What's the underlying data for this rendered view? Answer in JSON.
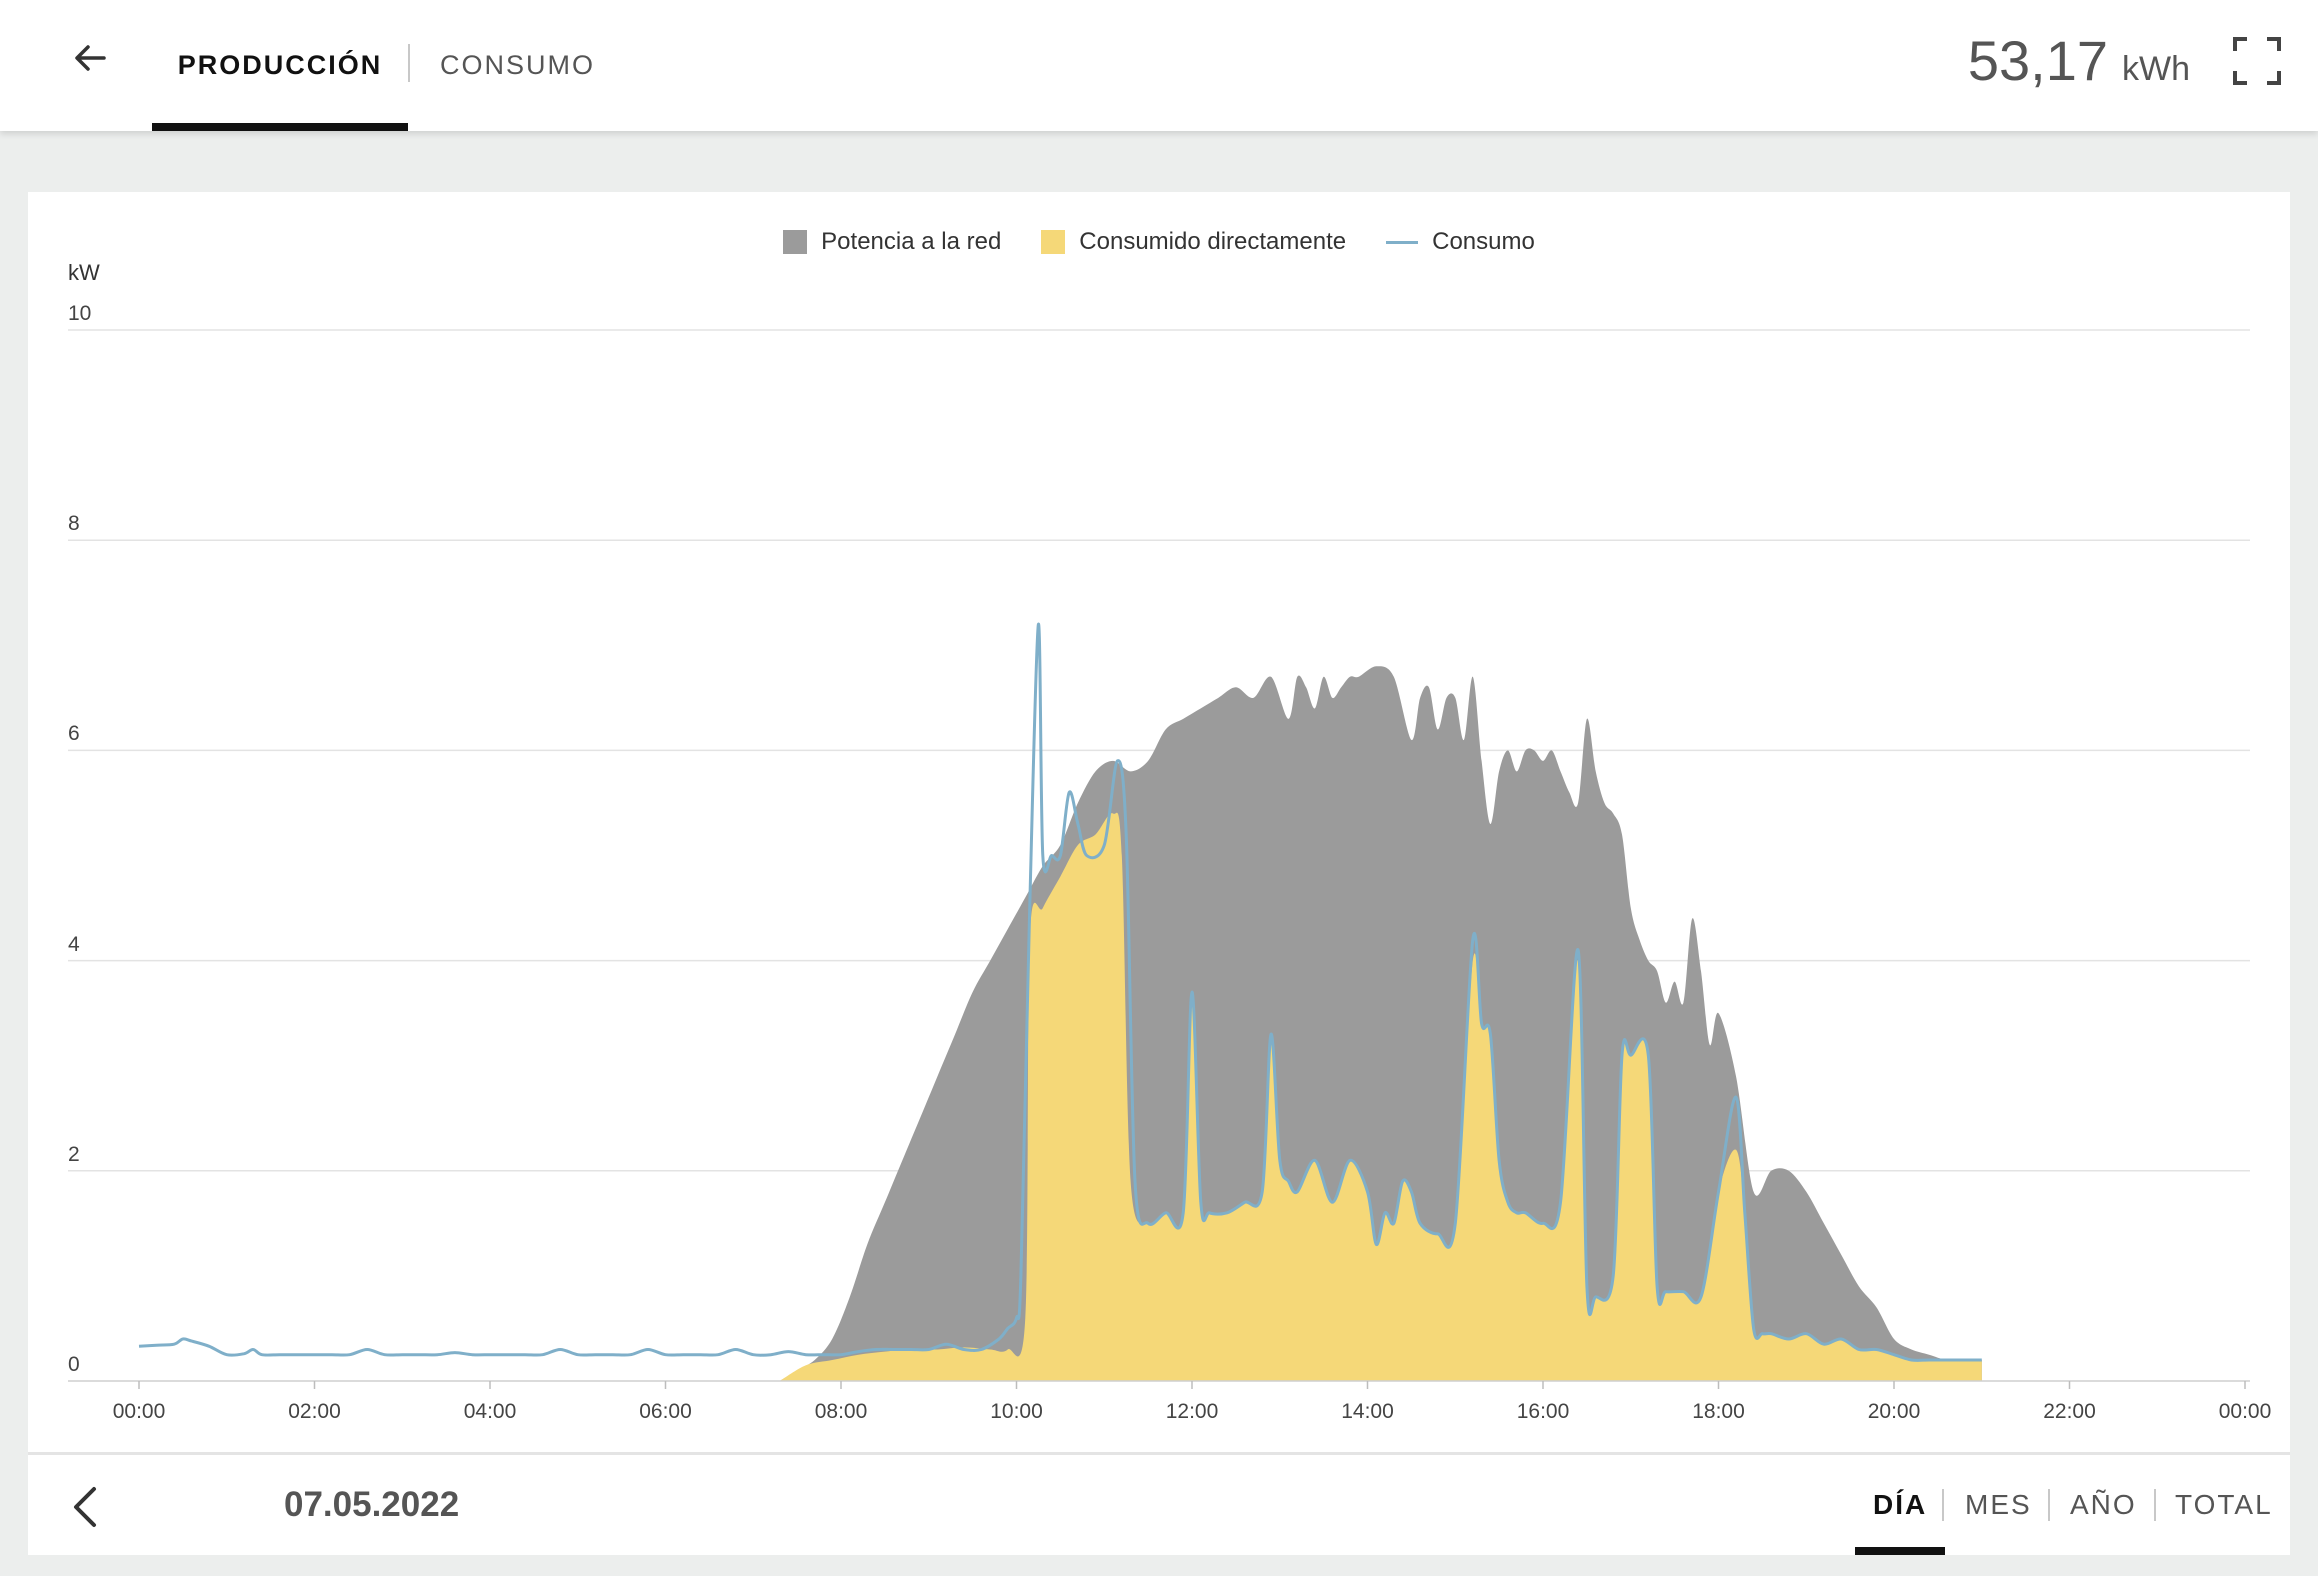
{
  "header": {
    "tabs": [
      {
        "label": "PRODUCCIÓN",
        "active": true
      },
      {
        "label": "CONSUMO",
        "active": false
      }
    ],
    "total_value": "53,17",
    "total_unit": "kWh"
  },
  "icons": {
    "back": "arrow-left-icon",
    "fullscreen": "fullscreen-icon",
    "previous": "chevron-left-icon"
  },
  "colors": {
    "potencia_a_la_red": "#9b9b9b",
    "consumido_directamente": "#f5d878",
    "consumo": "#7fafc9"
  },
  "chart_data": {
    "type": "area",
    "legend": [
      {
        "name": "Potencia a la red",
        "kind": "area"
      },
      {
        "name": "Consumido directamente",
        "kind": "area"
      },
      {
        "name": "Consumo",
        "kind": "line"
      }
    ],
    "legend_position": "top-center",
    "ylabel": "kW",
    "ylim": [
      0,
      10
    ],
    "yticks": [
      "0",
      "2",
      "4",
      "6",
      "8",
      "10"
    ],
    "xlim": [
      0,
      24
    ],
    "xticks": [
      "00:00",
      "02:00",
      "04:00",
      "06:00",
      "08:00",
      "10:00",
      "12:00",
      "14:00",
      "16:00",
      "18:00",
      "20:00",
      "22:00",
      "00:00"
    ],
    "grid": true,
    "series": [
      {
        "name": "Potencia a la red",
        "x": [
          7.3,
          7.5,
          7.7,
          7.9,
          8.1,
          8.3,
          8.5,
          8.7,
          8.9,
          9.1,
          9.3,
          9.5,
          9.7,
          9.9,
          10.1,
          10.3,
          10.5,
          10.7,
          10.9,
          11.1,
          11.3,
          11.5,
          11.7,
          11.9,
          12.1,
          12.3,
          12.5,
          12.7,
          12.9,
          13.1,
          13.2,
          13.3,
          13.4,
          13.5,
          13.6,
          13.7,
          13.8,
          13.9,
          14.1,
          14.3,
          14.5,
          14.6,
          14.7,
          14.8,
          14.9,
          15.0,
          15.1,
          15.2,
          15.3,
          15.4,
          15.5,
          15.6,
          15.7,
          15.8,
          15.9,
          16.0,
          16.1,
          16.2,
          16.3,
          16.4,
          16.5,
          16.6,
          16.7,
          16.8,
          16.9,
          17.0,
          17.1,
          17.2,
          17.3,
          17.4,
          17.5,
          17.6,
          17.7,
          17.8,
          17.9,
          18.0,
          18.2,
          18.4,
          18.6,
          18.8,
          19.0,
          19.2,
          19.4,
          19.6,
          19.8,
          20.0,
          20.2,
          20.4,
          20.6,
          20.8,
          21.0
        ],
        "y": [
          0.0,
          0.1,
          0.2,
          0.4,
          0.8,
          1.3,
          1.7,
          2.1,
          2.5,
          2.9,
          3.3,
          3.7,
          4.0,
          4.3,
          4.6,
          4.9,
          5.1,
          5.5,
          5.8,
          5.9,
          5.8,
          5.9,
          6.2,
          6.3,
          6.4,
          6.5,
          6.6,
          6.5,
          6.7,
          6.3,
          6.7,
          6.6,
          6.4,
          6.7,
          6.5,
          6.6,
          6.7,
          6.7,
          6.8,
          6.7,
          6.1,
          6.5,
          6.6,
          6.2,
          6.5,
          6.5,
          6.1,
          6.7,
          5.9,
          5.3,
          5.8,
          6.0,
          5.8,
          6.0,
          6.0,
          5.9,
          6.0,
          5.8,
          5.6,
          5.5,
          6.3,
          5.8,
          5.5,
          5.4,
          5.2,
          4.5,
          4.2,
          4.0,
          3.9,
          3.6,
          3.8,
          3.6,
          4.4,
          3.9,
          3.2,
          3.5,
          2.9,
          1.8,
          2.0,
          2.0,
          1.8,
          1.5,
          1.2,
          0.9,
          0.7,
          0.4,
          0.3,
          0.25,
          0.2,
          0.2,
          0.2
        ]
      },
      {
        "name": "Consumido directamente",
        "x": [
          7.3,
          7.6,
          7.9,
          8.2,
          8.5,
          8.8,
          9.1,
          9.4,
          9.7,
          9.9,
          10.1,
          10.15,
          10.3,
          10.5,
          10.7,
          10.9,
          11.1,
          11.2,
          11.3,
          11.5,
          11.7,
          11.9,
          12.0,
          12.1,
          12.2,
          12.4,
          12.6,
          12.8,
          12.9,
          13.0,
          13.1,
          13.2,
          13.4,
          13.6,
          13.8,
          14.0,
          14.1,
          14.2,
          14.3,
          14.4,
          14.5,
          14.6,
          14.8,
          15.0,
          15.2,
          15.3,
          15.4,
          15.5,
          15.6,
          15.7,
          15.8,
          16.0,
          16.2,
          16.4,
          16.5,
          16.6,
          16.8,
          16.9,
          17.0,
          17.2,
          17.3,
          17.4,
          17.6,
          17.8,
          18.0,
          18.2,
          18.3,
          18.4,
          18.5,
          18.6,
          18.8,
          19.0,
          19.2,
          19.4,
          19.6,
          19.8,
          20.0,
          20.2,
          20.4,
          20.6,
          20.8,
          21.0
        ],
        "y": [
          0.0,
          0.15,
          0.2,
          0.25,
          0.28,
          0.3,
          0.3,
          0.32,
          0.3,
          0.3,
          0.6,
          4.2,
          4.5,
          4.8,
          5.1,
          5.2,
          5.4,
          5.0,
          1.9,
          1.5,
          1.6,
          1.6,
          3.7,
          1.7,
          1.6,
          1.6,
          1.7,
          1.8,
          3.3,
          2.1,
          1.9,
          1.8,
          2.1,
          1.7,
          2.1,
          1.8,
          1.3,
          1.6,
          1.5,
          1.9,
          1.8,
          1.5,
          1.4,
          1.5,
          4.0,
          3.4,
          3.3,
          2.1,
          1.7,
          1.6,
          1.6,
          1.5,
          1.7,
          4.0,
          0.9,
          0.8,
          1.0,
          3.1,
          3.1,
          3.1,
          0.9,
          0.85,
          0.85,
          0.8,
          1.8,
          2.2,
          1.6,
          0.5,
          0.45,
          0.45,
          0.4,
          0.45,
          0.35,
          0.4,
          0.3,
          0.3,
          0.25,
          0.2,
          0.2,
          0.2,
          0.2,
          0.2
        ]
      },
      {
        "name": "Consumo",
        "x": [
          0.0,
          0.2,
          0.4,
          0.5,
          0.6,
          0.8,
          1.0,
          1.2,
          1.3,
          1.4,
          1.6,
          1.8,
          2.0,
          2.2,
          2.4,
          2.6,
          2.8,
          3.0,
          3.2,
          3.4,
          3.6,
          3.8,
          4.0,
          4.2,
          4.4,
          4.6,
          4.8,
          5.0,
          5.2,
          5.4,
          5.6,
          5.8,
          6.0,
          6.2,
          6.4,
          6.6,
          6.8,
          7.0,
          7.2,
          7.4,
          7.6,
          7.8,
          8.0,
          8.2,
          8.4,
          8.6,
          8.8,
          9.0,
          9.2,
          9.4,
          9.6,
          9.8,
          9.9,
          10.0,
          10.05,
          10.15,
          10.25,
          10.3,
          10.4,
          10.5,
          10.6,
          10.7,
          10.8,
          11.0,
          11.15,
          11.25,
          11.35,
          11.5,
          11.7,
          11.9,
          12.0,
          12.1,
          12.2,
          12.4,
          12.6,
          12.8,
          12.9,
          13.0,
          13.1,
          13.2,
          13.4,
          13.6,
          13.8,
          14.0,
          14.1,
          14.2,
          14.3,
          14.4,
          14.5,
          14.6,
          14.8,
          15.0,
          15.2,
          15.3,
          15.4,
          15.5,
          15.6,
          15.7,
          15.8,
          16.0,
          16.2,
          16.4,
          16.5,
          16.6,
          16.8,
          16.9,
          17.0,
          17.2,
          17.3,
          17.4,
          17.6,
          17.8,
          18.0,
          18.2,
          18.3,
          18.4,
          18.5,
          18.6,
          18.8,
          19.0,
          19.2,
          19.4,
          19.6,
          19.8,
          20.0,
          20.2,
          20.4,
          20.6,
          20.8,
          21.0
        ],
        "y": [
          0.33,
          0.34,
          0.35,
          0.4,
          0.38,
          0.33,
          0.25,
          0.26,
          0.3,
          0.25,
          0.25,
          0.25,
          0.25,
          0.25,
          0.25,
          0.3,
          0.25,
          0.25,
          0.25,
          0.25,
          0.27,
          0.25,
          0.25,
          0.25,
          0.25,
          0.25,
          0.3,
          0.25,
          0.25,
          0.25,
          0.25,
          0.3,
          0.25,
          0.25,
          0.25,
          0.25,
          0.3,
          0.25,
          0.25,
          0.28,
          0.25,
          0.25,
          0.25,
          0.28,
          0.3,
          0.3,
          0.3,
          0.3,
          0.35,
          0.3,
          0.3,
          0.4,
          0.5,
          0.6,
          1.0,
          4.5,
          7.2,
          5.0,
          5.0,
          5.0,
          5.6,
          5.3,
          5.0,
          5.1,
          5.9,
          5.2,
          1.9,
          1.5,
          1.6,
          1.6,
          3.7,
          1.7,
          1.6,
          1.6,
          1.7,
          1.8,
          3.3,
          2.1,
          1.9,
          1.8,
          2.1,
          1.7,
          2.1,
          1.8,
          1.3,
          1.6,
          1.5,
          1.9,
          1.8,
          1.5,
          1.4,
          1.5,
          4.2,
          3.4,
          3.3,
          2.1,
          1.7,
          1.6,
          1.6,
          1.5,
          1.7,
          4.1,
          0.9,
          0.8,
          1.0,
          3.1,
          3.1,
          3.1,
          0.9,
          0.85,
          0.85,
          0.8,
          1.8,
          2.7,
          1.6,
          0.5,
          0.45,
          0.45,
          0.4,
          0.45,
          0.35,
          0.4,
          0.3,
          0.3,
          0.25,
          0.2,
          0.2,
          0.2,
          0.2,
          0.2
        ]
      }
    ]
  },
  "footer": {
    "date": "07.05.2022",
    "periods": [
      {
        "label": "DÍA",
        "active": true
      },
      {
        "label": "MES",
        "active": false
      },
      {
        "label": "AÑO",
        "active": false
      },
      {
        "label": "TOTAL",
        "active": false
      }
    ]
  }
}
